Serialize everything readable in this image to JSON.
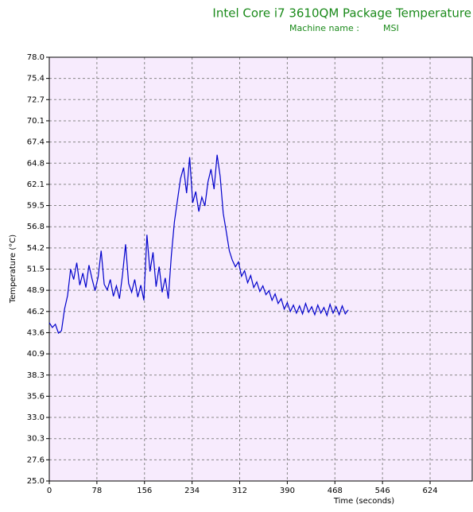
{
  "chart_data": {
    "type": "line",
    "title": "Intel Core i7 3610QM Package Temperature",
    "subtitle_label": "Machine name :",
    "subtitle_value": "MSI",
    "x_label": "Time (seconds)",
    "y_label": "Temperature (°C)",
    "xlim": [
      0,
      693
    ],
    "xticks": [
      0,
      78,
      156,
      234,
      312,
      390,
      468,
      546,
      624
    ],
    "ylim": [
      25,
      78
    ],
    "yticks": [
      {
        "value": 25,
        "label": "25.0"
      },
      {
        "value": 27.65,
        "label": "27.6"
      },
      {
        "value": 30.3,
        "label": "30.3"
      },
      {
        "value": 32.95,
        "label": "33.0"
      },
      {
        "value": 35.6,
        "label": "35.6"
      },
      {
        "value": 38.25,
        "label": "38.3"
      },
      {
        "value": 40.9,
        "label": "40.9"
      },
      {
        "value": 43.55,
        "label": "43.6"
      },
      {
        "value": 46.2,
        "label": "46.2"
      },
      {
        "value": 48.85,
        "label": "48.9"
      },
      {
        "value": 51.5,
        "label": "51.5"
      },
      {
        "value": 54.15,
        "label": "54.2"
      },
      {
        "value": 56.8,
        "label": "56.8"
      },
      {
        "value": 59.45,
        "label": "59.5"
      },
      {
        "value": 62.1,
        "label": "62.1"
      },
      {
        "value": 64.75,
        "label": "64.8"
      },
      {
        "value": 67.4,
        "label": "67.4"
      },
      {
        "value": 70.05,
        "label": "70.1"
      },
      {
        "value": 72.7,
        "label": "72.7"
      },
      {
        "value": 75.35,
        "label": "75.4"
      },
      {
        "value": 78,
        "label": "78.0"
      }
    ],
    "grid": true,
    "x": [
      0,
      5,
      10,
      15,
      20,
      25,
      30,
      35,
      40,
      45,
      50,
      55,
      60,
      65,
      70,
      75,
      80,
      85,
      90,
      95,
      100,
      105,
      110,
      115,
      120,
      125,
      130,
      135,
      140,
      145,
      150,
      155,
      160,
      165,
      170,
      175,
      180,
      185,
      190,
      195,
      200,
      205,
      210,
      215,
      220,
      225,
      230,
      235,
      240,
      245,
      250,
      255,
      260,
      265,
      270,
      275,
      280,
      285,
      290,
      295,
      300,
      305,
      310,
      315,
      320,
      325,
      330,
      335,
      340,
      345,
      350,
      355,
      360,
      365,
      370,
      375,
      380,
      385,
      390,
      395,
      400,
      405,
      410,
      415,
      420,
      425,
      430,
      435,
      440,
      445,
      450,
      455,
      460,
      465,
      470,
      475,
      480,
      485,
      490
    ],
    "series": [
      {
        "color": "#0000cc",
        "values": [
          44.8,
          44.2,
          44.6,
          43.5,
          43.8,
          46.5,
          48.2,
          51.5,
          50.2,
          52.3,
          49.5,
          51.0,
          49.2,
          52.0,
          50.3,
          48.8,
          50.5,
          53.8,
          49.6,
          48.9,
          50.2,
          48.1,
          49.4,
          47.8,
          50.8,
          54.6,
          49.7,
          48.6,
          50.2,
          48.0,
          49.5,
          47.6,
          55.8,
          51.2,
          53.6,
          49.3,
          51.8,
          48.6,
          50.4,
          47.8,
          53.2,
          57.4,
          60.1,
          62.8,
          64.2,
          61.0,
          65.5,
          59.8,
          61.2,
          58.7,
          60.5,
          59.4,
          62.4,
          64.0,
          61.5,
          65.8,
          63.1,
          58.5,
          56.2,
          53.8,
          52.6,
          51.8,
          52.4,
          50.6,
          51.3,
          49.8,
          50.7,
          49.2,
          49.9,
          48.7,
          49.4,
          48.3,
          48.8,
          47.6,
          48.4,
          47.2,
          47.8,
          46.5,
          47.3,
          46.2,
          47.0,
          46.0,
          46.9,
          45.9,
          47.2,
          46.1,
          46.8,
          45.8,
          47.0,
          46.0,
          46.7,
          45.7,
          47.1,
          46.0,
          46.8,
          45.8,
          46.9,
          45.9,
          46.4
        ]
      }
    ]
  }
}
